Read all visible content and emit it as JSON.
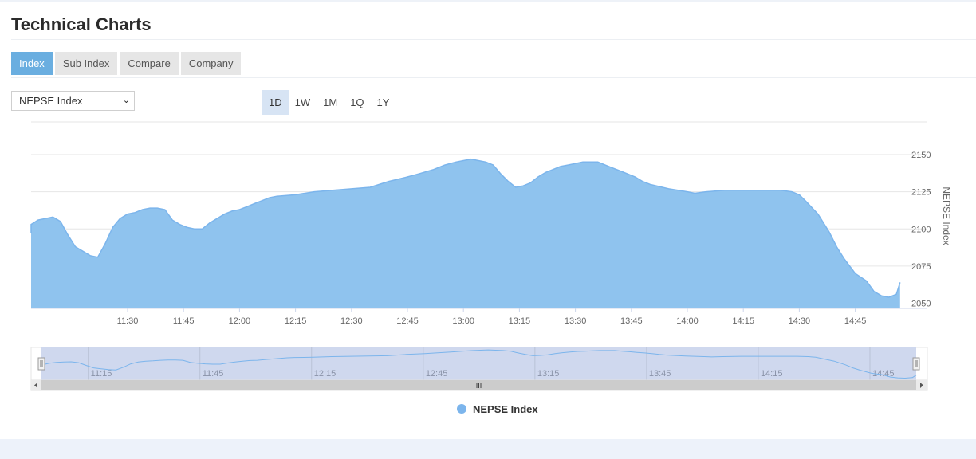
{
  "page": {
    "title": "Technical Charts"
  },
  "tabs": [
    {
      "label": "Index",
      "active": true
    },
    {
      "label": "Sub Index",
      "active": false
    },
    {
      "label": "Compare",
      "active": false
    },
    {
      "label": "Company",
      "active": false
    }
  ],
  "index_select": {
    "value": "NEPSE Index"
  },
  "ranges": [
    {
      "label": "1D",
      "active": true
    },
    {
      "label": "1W",
      "active": false
    },
    {
      "label": "1M",
      "active": false
    },
    {
      "label": "1Q",
      "active": false
    },
    {
      "label": "1Y",
      "active": false
    }
  ],
  "colors": {
    "series": "#7cb5ec",
    "fill": "#8fc3ee",
    "accent": "#6aaee0"
  },
  "chart_data": {
    "type": "area",
    "title": "",
    "ylabel": "NEPSE Index",
    "xlabel": "",
    "ylim": [
      2050,
      2150
    ],
    "yticks": [
      2050,
      2075,
      2100,
      2125,
      2150
    ],
    "xticks": [
      "11:30",
      "11:45",
      "12:00",
      "12:15",
      "12:30",
      "12:45",
      "13:00",
      "13:15",
      "13:30",
      "13:45",
      "14:00",
      "14:15",
      "14:30",
      "14:45"
    ],
    "navigator_ticks": [
      "11:15",
      "11:45",
      "12:15",
      "12:45",
      "13:15",
      "13:45",
      "14:15",
      "14:45"
    ],
    "grid": true,
    "legend": "bottom-center",
    "series": [
      {
        "name": "NEPSE Index",
        "x": [
          "11:02",
          "11:04",
          "11:06",
          "11:08",
          "11:10",
          "11:12",
          "11:14",
          "11:16",
          "11:18",
          "11:20",
          "11:22",
          "11:24",
          "11:26",
          "11:28",
          "11:30",
          "11:32",
          "11:34",
          "11:36",
          "11:38",
          "11:40",
          "11:42",
          "11:44",
          "11:46",
          "11:48",
          "11:50",
          "11:52",
          "11:54",
          "11:56",
          "11:58",
          "12:00",
          "12:02",
          "12:04",
          "12:06",
          "12:08",
          "12:10",
          "12:15",
          "12:20",
          "12:25",
          "12:30",
          "12:35",
          "12:40",
          "12:45",
          "12:48",
          "12:52",
          "12:55",
          "12:58",
          "13:00",
          "13:02",
          "13:04",
          "13:06",
          "13:08",
          "13:10",
          "13:12",
          "13:14",
          "13:16",
          "13:18",
          "13:20",
          "13:22",
          "13:24",
          "13:26",
          "13:28",
          "13:30",
          "13:32",
          "13:34",
          "13:36",
          "13:38",
          "13:40",
          "13:42",
          "13:44",
          "13:46",
          "13:48",
          "13:50",
          "13:55",
          "14:00",
          "14:02",
          "14:05",
          "14:10",
          "14:15",
          "14:20",
          "14:25",
          "14:28",
          "14:30",
          "14:32",
          "14:35",
          "14:38",
          "14:40",
          "14:42",
          "14:45",
          "14:48",
          "14:50",
          "14:52",
          "14:54",
          "14:56",
          "14:57"
        ],
        "values": [
          2097,
          2103,
          2106,
          2107,
          2108,
          2105,
          2096,
          2088,
          2085,
          2082,
          2081,
          2090,
          2101,
          2107,
          2110,
          2111,
          2113,
          2114,
          2114,
          2113,
          2106,
          2103,
          2101,
          2100,
          2100,
          2104,
          2107,
          2110,
          2112,
          2113,
          2115,
          2117,
          2119,
          2121,
          2122,
          2123,
          2125,
          2126,
          2127,
          2128,
          2132,
          2135,
          2137,
          2140,
          2143,
          2145,
          2146,
          2147,
          2146,
          2145,
          2143,
          2137,
          2132,
          2128,
          2129,
          2131,
          2135,
          2138,
          2140,
          2142,
          2143,
          2144,
          2145,
          2145,
          2145,
          2143,
          2141,
          2139,
          2137,
          2135,
          2132,
          2130,
          2127,
          2125,
          2124,
          2125,
          2126,
          2126,
          2126,
          2126,
          2125,
          2123,
          2118,
          2110,
          2098,
          2088,
          2080,
          2070,
          2065,
          2058,
          2055,
          2054,
          2056,
          2064
        ]
      }
    ]
  }
}
